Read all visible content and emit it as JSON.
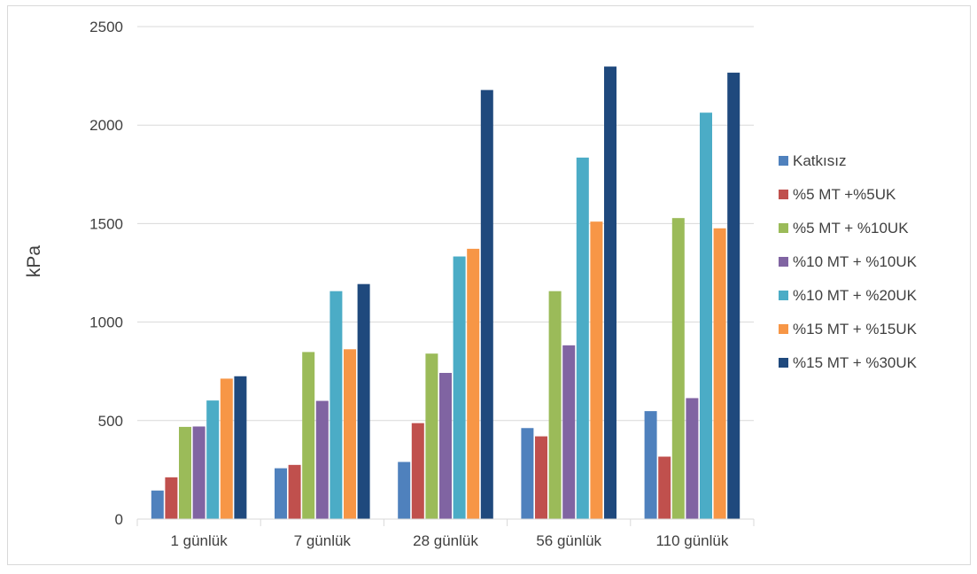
{
  "chart_data": {
    "type": "bar",
    "title": "",
    "xlabel": "",
    "ylabel": "kPa",
    "ylim": [
      0,
      2500
    ],
    "yticks": [
      0,
      500,
      1000,
      1500,
      2000,
      2500
    ],
    "grid": true,
    "legend_position": "right",
    "categories": [
      "1 günlük",
      "7 günlük",
      "28 günlük",
      "56 günlük",
      "110 günlük"
    ],
    "series": [
      {
        "name": "Katkısız",
        "color": "#4f81bd",
        "values": [
          145,
          258,
          290,
          462,
          548
        ]
      },
      {
        "name": "%5 MT +%5UK",
        "color": "#c0504d",
        "values": [
          212,
          275,
          487,
          420,
          317
        ]
      },
      {
        "name": "%5 MT + %10UK",
        "color": "#9bbb59",
        "values": [
          468,
          848,
          840,
          1157,
          1528
        ]
      },
      {
        "name": "%10 MT + %10UK",
        "color": "#8064a2",
        "values": [
          470,
          600,
          742,
          882,
          614
        ]
      },
      {
        "name": "%10 MT + %20UK",
        "color": "#4bacc6",
        "values": [
          602,
          1157,
          1333,
          1835,
          2063
        ]
      },
      {
        "name": "%15 MT + %15UK",
        "color": "#f79646",
        "values": [
          713,
          862,
          1372,
          1510,
          1476
        ]
      },
      {
        "name": "%15 MT + %30UK",
        "color": "#1f497d",
        "values": [
          725,
          1193,
          2178,
          2297,
          2266
        ]
      }
    ]
  }
}
